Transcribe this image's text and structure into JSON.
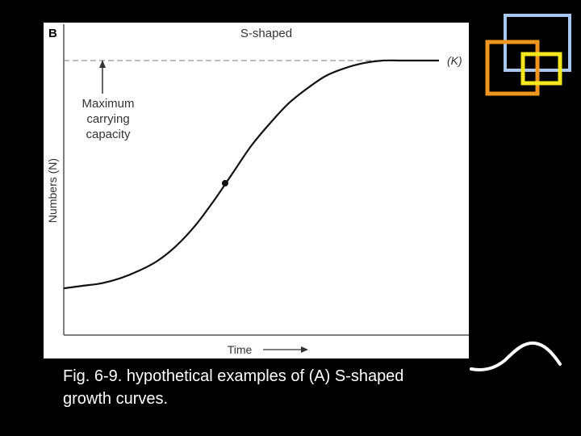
{
  "caption": "Fig. 6-9. hypothetical examples of (A) S-shaped growth curves.",
  "chart_data": {
    "type": "line",
    "panel_letter": "B",
    "title": "S-shaped",
    "xlabel": "Time",
    "ylabel": "Numbers (N)",
    "asymptote_label": "(K)",
    "annotation": [
      "Maximum",
      "carrying",
      "capacity"
    ],
    "xlim": [
      0,
      1
    ],
    "ylim": [
      0,
      1
    ],
    "series": [
      {
        "x": [
          0.0,
          0.05,
          0.1,
          0.15,
          0.2,
          0.25,
          0.3,
          0.35,
          0.4,
          0.45,
          0.5,
          0.55,
          0.6,
          0.65,
          0.7,
          0.75,
          0.8,
          0.85,
          0.9,
          0.95,
          1.0
        ],
        "values": [
          0.09,
          0.1,
          0.11,
          0.13,
          0.16,
          0.2,
          0.26,
          0.34,
          0.44,
          0.55,
          0.66,
          0.75,
          0.83,
          0.89,
          0.94,
          0.97,
          0.99,
          1.0,
          1.0,
          1.0,
          1.0
        ]
      }
    ],
    "inflection_point": {
      "x": 0.43,
      "y": 0.51
    },
    "carrying_capacity": 1.0,
    "grid": false
  },
  "decor_colors": {
    "blue_square": "#a9c8f0",
    "orange_square": "#f0961e",
    "yellow_square": "#f5e61e",
    "squiggle": "#ffffff"
  }
}
